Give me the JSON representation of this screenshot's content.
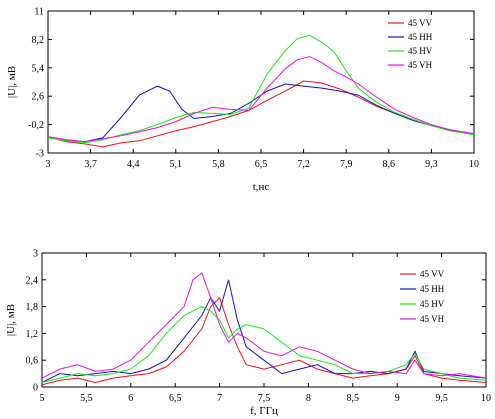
{
  "chart_data": [
    {
      "type": "line",
      "xlabel": "t,нс",
      "ylabel": "|U|, мВ",
      "xlim": [
        3,
        10
      ],
      "ylim": [
        -3,
        11
      ],
      "xticks": [
        "3",
        "3,7",
        "4,4",
        "5,1",
        "5,8",
        "6,5",
        "7,2",
        "7,9",
        "8,6",
        "9,3",
        "10"
      ],
      "yticks": [
        "-3",
        "-0,2",
        "2,6",
        "5,4",
        "8,2",
        "11"
      ],
      "legend": "top-right",
      "grid": false,
      "series": [
        {
          "name": "45 VV",
          "color": "#e8141e",
          "x": [
            3.0,
            3.3,
            3.6,
            3.9,
            4.2,
            4.5,
            4.8,
            5.1,
            5.4,
            5.7,
            6.0,
            6.3,
            6.6,
            6.9,
            7.2,
            7.5,
            7.8,
            8.1,
            8.4,
            8.7,
            9.0,
            9.3,
            9.6,
            10.0
          ],
          "y": [
            -1.4,
            -1.9,
            -2.1,
            -2.4,
            -2.0,
            -1.8,
            -1.3,
            -0.8,
            -0.4,
            0.1,
            0.6,
            1.2,
            2.2,
            3.1,
            4.1,
            3.9,
            3.3,
            2.5,
            1.6,
            0.9,
            0.3,
            -0.3,
            -0.8,
            -1.1
          ]
        },
        {
          "name": "45 HH",
          "color": "#1414b4",
          "x": [
            3.0,
            3.3,
            3.6,
            3.9,
            4.2,
            4.5,
            4.8,
            5.0,
            5.2,
            5.4,
            5.7,
            6.0,
            6.3,
            6.6,
            6.9,
            7.2,
            7.5,
            7.8,
            8.1,
            8.4,
            8.7,
            9.0,
            9.3,
            9.6,
            10.0
          ],
          "y": [
            -1.4,
            -1.7,
            -1.9,
            -1.5,
            0.5,
            2.7,
            3.6,
            3.1,
            1.3,
            0.4,
            0.6,
            0.9,
            1.9,
            3.1,
            3.8,
            3.6,
            3.4,
            3.1,
            2.7,
            1.7,
            0.9,
            0.2,
            -0.3,
            -0.7,
            -1.1
          ]
        },
        {
          "name": "45 HV",
          "color": "#1ee61e",
          "x": [
            3.0,
            3.3,
            3.6,
            3.9,
            4.2,
            4.5,
            4.8,
            5.1,
            5.4,
            5.7,
            6.0,
            6.3,
            6.6,
            6.9,
            7.1,
            7.3,
            7.5,
            7.7,
            7.9,
            8.1,
            8.4,
            8.7,
            9.0,
            9.3,
            9.6,
            10.0
          ],
          "y": [
            -1.5,
            -1.8,
            -2.0,
            -1.7,
            -1.2,
            -0.8,
            -0.2,
            0.5,
            1.0,
            0.9,
            0.8,
            1.4,
            4.8,
            7.1,
            8.3,
            8.6,
            7.9,
            7.0,
            5.1,
            3.4,
            2.0,
            1.0,
            0.3,
            -0.3,
            -0.8,
            -1.2
          ]
        },
        {
          "name": "45 VH",
          "color": "#e614e6",
          "x": [
            3.0,
            3.3,
            3.6,
            3.9,
            4.2,
            4.5,
            4.8,
            5.1,
            5.4,
            5.7,
            6.0,
            6.3,
            6.6,
            6.9,
            7.1,
            7.3,
            7.5,
            7.7,
            7.9,
            8.1,
            8.4,
            8.7,
            9.0,
            9.3,
            9.6,
            10.0
          ],
          "y": [
            -1.4,
            -1.7,
            -1.9,
            -1.6,
            -1.3,
            -0.9,
            -0.5,
            0.1,
            0.9,
            1.5,
            1.3,
            1.2,
            3.4,
            5.3,
            6.2,
            6.5,
            5.9,
            5.1,
            4.5,
            3.8,
            2.5,
            1.3,
            0.5,
            -0.2,
            -0.7,
            -1.1
          ]
        }
      ]
    },
    {
      "type": "line",
      "xlabel": "f, ГГц",
      "ylabel": "|U|, мВ",
      "xlim": [
        5,
        10
      ],
      "ylim": [
        0,
        3
      ],
      "xticks": [
        "5",
        "5,5",
        "6",
        "6,5",
        "7",
        "7,5",
        "8",
        "8,5",
        "9",
        "9,5",
        "10"
      ],
      "yticks": [
        "0",
        "0,6",
        "1,2",
        "1,8",
        "2,4",
        "3"
      ],
      "legend": "right",
      "grid": false,
      "series": [
        {
          "name": "45 VV",
          "color": "#e8141e",
          "x": [
            5.0,
            5.2,
            5.4,
            5.6,
            5.8,
            6.0,
            6.2,
            6.4,
            6.6,
            6.8,
            6.9,
            7.0,
            7.1,
            7.2,
            7.3,
            7.5,
            7.7,
            7.9,
            8.1,
            8.3,
            8.5,
            8.7,
            8.9,
            9.1,
            9.2,
            9.3,
            9.5,
            9.7,
            10.0
          ],
          "y": [
            0.05,
            0.15,
            0.2,
            0.1,
            0.2,
            0.25,
            0.3,
            0.45,
            0.8,
            1.3,
            1.8,
            2.0,
            1.4,
            0.9,
            0.5,
            0.4,
            0.5,
            0.6,
            0.4,
            0.3,
            0.2,
            0.25,
            0.3,
            0.4,
            0.7,
            0.3,
            0.2,
            0.15,
            0.1
          ]
        },
        {
          "name": "45 HH",
          "color": "#1414b4",
          "x": [
            5.0,
            5.2,
            5.4,
            5.6,
            5.8,
            6.0,
            6.2,
            6.4,
            6.6,
            6.8,
            6.9,
            7.0,
            7.1,
            7.2,
            7.3,
            7.5,
            7.7,
            7.9,
            8.1,
            8.3,
            8.5,
            8.7,
            8.9,
            9.1,
            9.2,
            9.3,
            9.5,
            9.7,
            10.0
          ],
          "y": [
            0.1,
            0.3,
            0.25,
            0.3,
            0.35,
            0.3,
            0.4,
            0.6,
            1.1,
            1.6,
            2.0,
            1.7,
            2.4,
            1.5,
            0.9,
            0.6,
            0.3,
            0.4,
            0.5,
            0.3,
            0.3,
            0.35,
            0.3,
            0.4,
            0.8,
            0.35,
            0.3,
            0.25,
            0.2
          ]
        },
        {
          "name": "45 HV",
          "color": "#1ee61e",
          "x": [
            5.0,
            5.2,
            5.4,
            5.6,
            5.8,
            6.0,
            6.2,
            6.4,
            6.6,
            6.8,
            6.9,
            7.0,
            7.1,
            7.2,
            7.3,
            7.5,
            7.7,
            7.9,
            8.1,
            8.3,
            8.5,
            8.7,
            8.9,
            9.1,
            9.2,
            9.3,
            9.5,
            9.7,
            10.0
          ],
          "y": [
            0.1,
            0.2,
            0.3,
            0.25,
            0.3,
            0.4,
            0.7,
            1.2,
            1.6,
            1.8,
            1.7,
            1.5,
            1.1,
            1.3,
            1.4,
            1.3,
            1.0,
            0.7,
            0.6,
            0.5,
            0.3,
            0.3,
            0.35,
            0.5,
            0.75,
            0.4,
            0.3,
            0.2,
            0.15
          ]
        },
        {
          "name": "45 VH",
          "color": "#e614e6",
          "x": [
            5.0,
            5.2,
            5.4,
            5.6,
            5.8,
            6.0,
            6.2,
            6.4,
            6.6,
            6.7,
            6.8,
            6.9,
            7.0,
            7.1,
            7.2,
            7.3,
            7.5,
            7.7,
            7.9,
            8.1,
            8.3,
            8.5,
            8.7,
            8.9,
            9.1,
            9.2,
            9.3,
            9.5,
            9.7,
            10.0
          ],
          "y": [
            0.2,
            0.4,
            0.5,
            0.35,
            0.4,
            0.6,
            1.0,
            1.4,
            1.8,
            2.4,
            2.55,
            2.0,
            1.4,
            1.0,
            1.2,
            1.1,
            0.8,
            0.7,
            0.9,
            0.8,
            0.6,
            0.4,
            0.3,
            0.35,
            0.3,
            0.6,
            0.3,
            0.25,
            0.3,
            0.2
          ]
        }
      ]
    }
  ]
}
